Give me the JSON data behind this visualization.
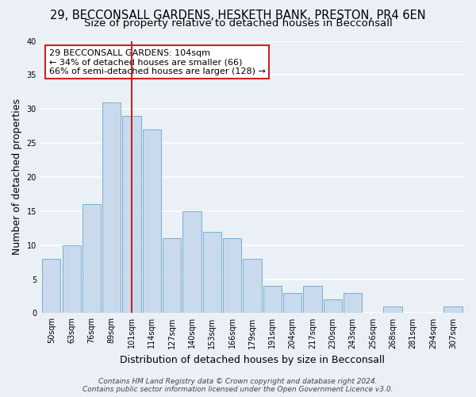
{
  "title": "29, BECCONSALL GARDENS, HESKETH BANK, PRESTON, PR4 6EN",
  "subtitle": "Size of property relative to detached houses in Becconsall",
  "xlabel": "Distribution of detached houses by size in Becconsall",
  "ylabel": "Number of detached properties",
  "bar_labels": [
    "50sqm",
    "63sqm",
    "76sqm",
    "89sqm",
    "101sqm",
    "114sqm",
    "127sqm",
    "140sqm",
    "153sqm",
    "166sqm",
    "179sqm",
    "191sqm",
    "204sqm",
    "217sqm",
    "230sqm",
    "243sqm",
    "256sqm",
    "268sqm",
    "281sqm",
    "294sqm",
    "307sqm"
  ],
  "bar_values": [
    8,
    10,
    16,
    31,
    29,
    27,
    11,
    15,
    12,
    11,
    8,
    4,
    3,
    4,
    2,
    3,
    0,
    1,
    0,
    0,
    1
  ],
  "bar_color": "#c8daeb",
  "bar_edge_color": "#7aafd4",
  "vline_index": 4,
  "vline_color": "#cc2222",
  "ylim": [
    0,
    40
  ],
  "yticks": [
    0,
    5,
    10,
    15,
    20,
    25,
    30,
    35,
    40
  ],
  "annotation_line1": "29 BECCONSALL GARDENS: 104sqm",
  "annotation_line2": "← 34% of detached houses are smaller (66)",
  "annotation_line3": "66% of semi-detached houses are larger (128) →",
  "annotation_box_color": "white",
  "annotation_box_edge_color": "#cc2222",
  "footer_line1": "Contains HM Land Registry data © Crown copyright and database right 2024.",
  "footer_line2": "Contains public sector information licensed under the Open Government Licence v3.0.",
  "background_color": "#eaf0f6",
  "grid_color": "white",
  "title_fontsize": 10.5,
  "subtitle_fontsize": 9.5,
  "ylabel_fontsize": 9,
  "xlabel_fontsize": 9,
  "tick_fontsize": 7,
  "annotation_fontsize": 8,
  "footer_fontsize": 6.5
}
